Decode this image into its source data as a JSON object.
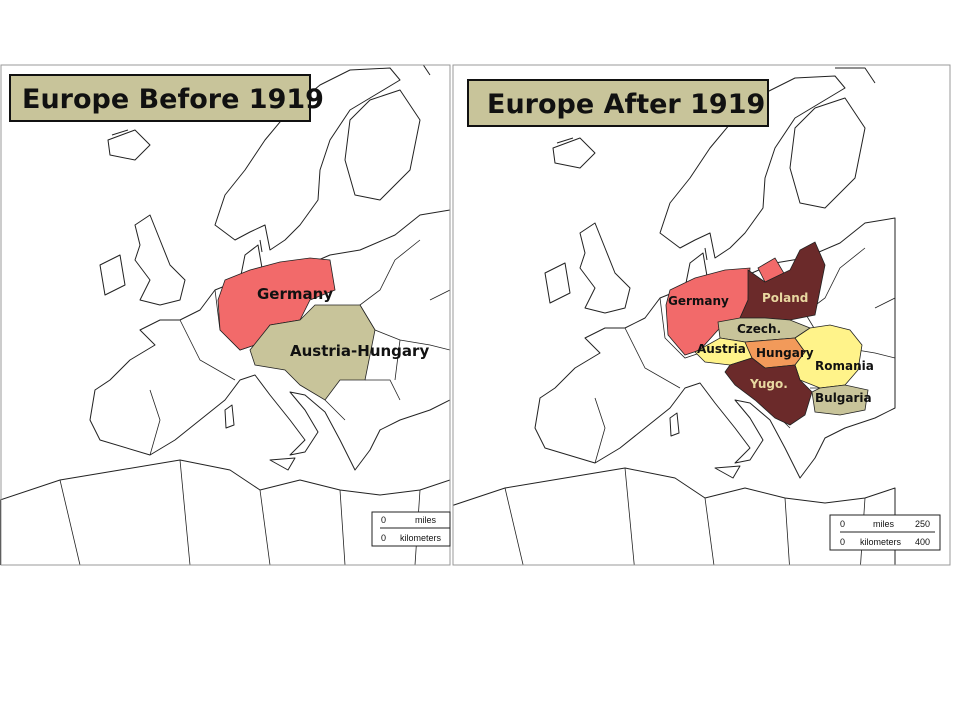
{
  "maps": [
    {
      "title": "Europe Before 1919",
      "labels": [
        "Germany",
        "Austria-Hungary"
      ],
      "scale": {
        "miles": {
          "start": 0,
          "label": "miles"
        },
        "kilometers": {
          "start": 0,
          "label": "kilometers"
        }
      }
    },
    {
      "title": "Europe After 1919",
      "labels": [
        "Germany",
        "Poland",
        "Czech.",
        "Austria",
        "Hungary",
        "Romania",
        "Yugo.",
        "Bulgaria"
      ],
      "scale": {
        "miles": {
          "start": 0,
          "label": "miles",
          "end": 250
        },
        "kilometers": {
          "start": 0,
          "label": "kilometers",
          "end": 400
        }
      }
    }
  ]
}
